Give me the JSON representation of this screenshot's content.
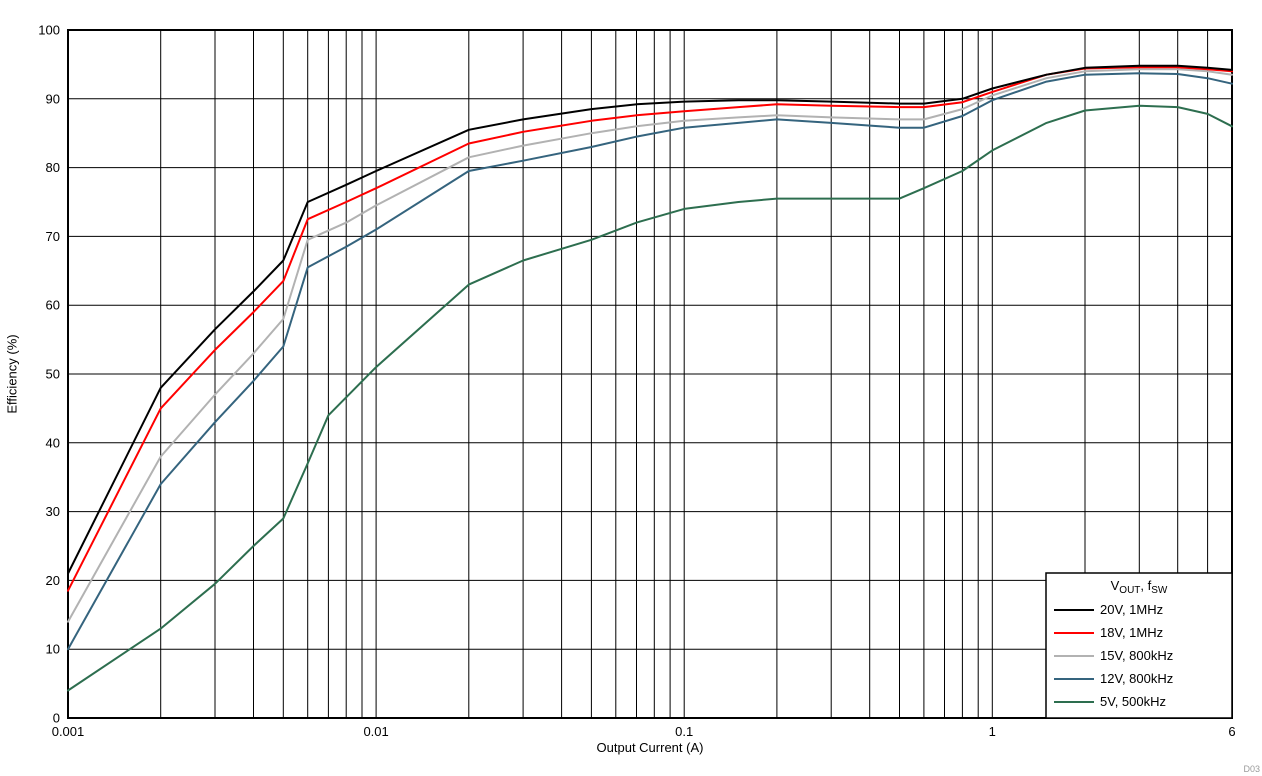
{
  "watermark": "D03",
  "chart_data": {
    "type": "line",
    "title": "",
    "xlabel": "Output Current (A)",
    "ylabel": "Efficiency (%)",
    "xscale": "log",
    "xlim": [
      0.001,
      6
    ],
    "ylim": [
      0,
      100
    ],
    "y_tick_step": 10,
    "grid": "major-and-minor, solid black",
    "x_ticks": [
      {
        "v": 0.001,
        "label": "0.001"
      },
      {
        "v": 0.01,
        "label": "0.01"
      },
      {
        "v": 0.1,
        "label": "0.1"
      },
      {
        "v": 1,
        "label": "1"
      },
      {
        "v": 6,
        "label": "6"
      }
    ],
    "legend": {
      "position": "bottom-right-inside",
      "title_parts": [
        {
          "text": "V"
        },
        {
          "text": "OUT",
          "sub": true
        },
        {
          "text": ", f"
        },
        {
          "text": "SW",
          "sub": true
        }
      ]
    },
    "series": [
      {
        "name": "20V, 1MHz",
        "color": "#000000",
        "points": [
          [
            0.001,
            21
          ],
          [
            0.002,
            48
          ],
          [
            0.003,
            56.5
          ],
          [
            0.004,
            62
          ],
          [
            0.005,
            66.5
          ],
          [
            0.006,
            75
          ],
          [
            0.008,
            77.5
          ],
          [
            0.01,
            79.5
          ],
          [
            0.02,
            85.5
          ],
          [
            0.03,
            87
          ],
          [
            0.05,
            88.5
          ],
          [
            0.07,
            89.2
          ],
          [
            0.1,
            89.6
          ],
          [
            0.15,
            89.8
          ],
          [
            0.2,
            89.8
          ],
          [
            0.3,
            89.6
          ],
          [
            0.5,
            89.3
          ],
          [
            0.6,
            89.3
          ],
          [
            0.8,
            90
          ],
          [
            1,
            91.5
          ],
          [
            1.5,
            93.5
          ],
          [
            2,
            94.5
          ],
          [
            3,
            94.8
          ],
          [
            4,
            94.8
          ],
          [
            5,
            94.5
          ],
          [
            6,
            94.2
          ]
        ]
      },
      {
        "name": "18V, 1MHz",
        "color": "#ff0000",
        "points": [
          [
            0.001,
            18.5
          ],
          [
            0.002,
            45
          ],
          [
            0.003,
            53.5
          ],
          [
            0.004,
            59
          ],
          [
            0.005,
            63.5
          ],
          [
            0.006,
            72.5
          ],
          [
            0.008,
            75
          ],
          [
            0.01,
            77
          ],
          [
            0.02,
            83.5
          ],
          [
            0.03,
            85.2
          ],
          [
            0.05,
            86.8
          ],
          [
            0.07,
            87.6
          ],
          [
            0.1,
            88.2
          ],
          [
            0.15,
            88.8
          ],
          [
            0.2,
            89.2
          ],
          [
            0.3,
            89
          ],
          [
            0.5,
            88.8
          ],
          [
            0.6,
            88.8
          ],
          [
            0.8,
            89.5
          ],
          [
            1,
            91
          ],
          [
            1.5,
            93.5
          ],
          [
            2,
            94.4
          ],
          [
            3,
            94.6
          ],
          [
            4,
            94.6
          ],
          [
            5,
            94.3
          ],
          [
            6,
            94
          ]
        ]
      },
      {
        "name": "15V, 800kHz",
        "color": "#b2b2b2",
        "points": [
          [
            0.001,
            14
          ],
          [
            0.002,
            38
          ],
          [
            0.003,
            47
          ],
          [
            0.004,
            53
          ],
          [
            0.005,
            58
          ],
          [
            0.006,
            69.5
          ],
          [
            0.008,
            72
          ],
          [
            0.01,
            74.5
          ],
          [
            0.02,
            81.5
          ],
          [
            0.03,
            83.2
          ],
          [
            0.05,
            85
          ],
          [
            0.07,
            86
          ],
          [
            0.1,
            86.8
          ],
          [
            0.15,
            87.3
          ],
          [
            0.2,
            87.6
          ],
          [
            0.3,
            87.3
          ],
          [
            0.5,
            87
          ],
          [
            0.6,
            87
          ],
          [
            0.8,
            88.5
          ],
          [
            1,
            90.5
          ],
          [
            1.5,
            93
          ],
          [
            2,
            94
          ],
          [
            3,
            94.3
          ],
          [
            4,
            94.3
          ],
          [
            5,
            94
          ],
          [
            6,
            93.5
          ]
        ]
      },
      {
        "name": "12V, 800kHz",
        "color": "#35647e",
        "points": [
          [
            0.001,
            10
          ],
          [
            0.002,
            34
          ],
          [
            0.003,
            43
          ],
          [
            0.004,
            49
          ],
          [
            0.005,
            54
          ],
          [
            0.006,
            65.5
          ],
          [
            0.008,
            68.5
          ],
          [
            0.01,
            71
          ],
          [
            0.02,
            79.5
          ],
          [
            0.03,
            81
          ],
          [
            0.05,
            83
          ],
          [
            0.07,
            84.5
          ],
          [
            0.1,
            85.8
          ],
          [
            0.15,
            86.5
          ],
          [
            0.2,
            87
          ],
          [
            0.3,
            86.5
          ],
          [
            0.5,
            85.8
          ],
          [
            0.6,
            85.8
          ],
          [
            0.8,
            87.5
          ],
          [
            1,
            89.8
          ],
          [
            1.5,
            92.5
          ],
          [
            2,
            93.5
          ],
          [
            3,
            93.7
          ],
          [
            4,
            93.6
          ],
          [
            5,
            93
          ],
          [
            6,
            92.2
          ]
        ]
      },
      {
        "name": "5V, 500kHz",
        "color": "#2d6e4f",
        "points": [
          [
            0.001,
            4
          ],
          [
            0.002,
            13
          ],
          [
            0.003,
            19.5
          ],
          [
            0.004,
            25
          ],
          [
            0.005,
            29
          ],
          [
            0.006,
            37
          ],
          [
            0.007,
            44
          ],
          [
            0.01,
            51
          ],
          [
            0.02,
            63
          ],
          [
            0.03,
            66.5
          ],
          [
            0.05,
            69.5
          ],
          [
            0.07,
            72
          ],
          [
            0.1,
            74
          ],
          [
            0.15,
            75
          ],
          [
            0.2,
            75.5
          ],
          [
            0.3,
            75.5
          ],
          [
            0.5,
            75.5
          ],
          [
            0.6,
            77
          ],
          [
            0.8,
            79.5
          ],
          [
            1,
            82.5
          ],
          [
            1.5,
            86.5
          ],
          [
            2,
            88.3
          ],
          [
            3,
            89
          ],
          [
            4,
            88.8
          ],
          [
            5,
            87.8
          ],
          [
            6,
            86
          ]
        ]
      }
    ]
  }
}
